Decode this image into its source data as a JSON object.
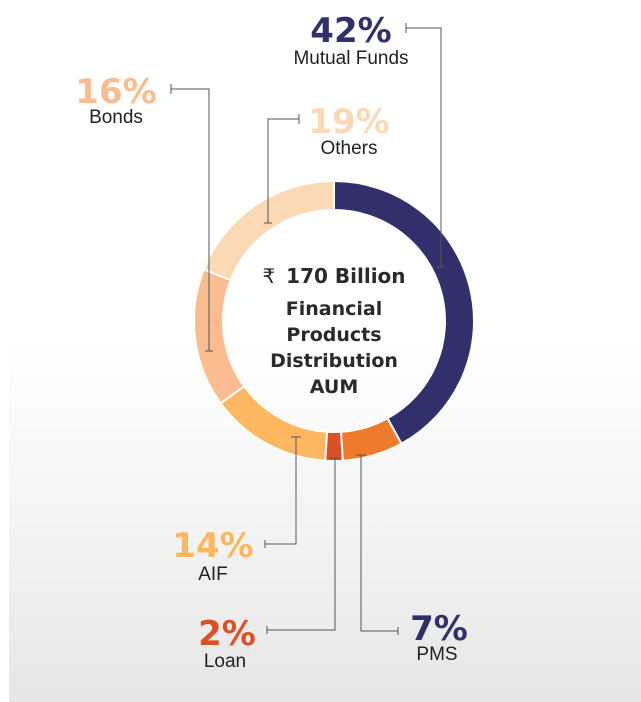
{
  "chart_data": {
    "type": "pie",
    "variant": "donut",
    "center_label": {
      "currency": "₹",
      "amount": "170 Billion",
      "lines": [
        "Financial",
        "Products",
        "Distribution",
        "AUM"
      ]
    },
    "slices": [
      {
        "name": "Mutual Funds",
        "value": 42,
        "label": "42%",
        "color": "#32306a",
        "label_color": "#32306a"
      },
      {
        "name": "PMS",
        "value": 7,
        "label": "7%",
        "color": "#ee7a2c",
        "label_color": "#32306a"
      },
      {
        "name": "Loan",
        "value": 2,
        "label": "2%",
        "color": "#dd4f27",
        "label_color": "#dd4f27"
      },
      {
        "name": "AIF",
        "value": 14,
        "label": "14%",
        "color": "#fdb760",
        "label_color": "#fdb760"
      },
      {
        "name": "Bonds",
        "value": 16,
        "label": "16%",
        "color": "#fbbc8f",
        "label_color": "#fbbc8f"
      },
      {
        "name": "Others",
        "value": 19,
        "label": "19%",
        "color": "#fbd9b4",
        "label_color": "#fbd9b4"
      }
    ]
  }
}
